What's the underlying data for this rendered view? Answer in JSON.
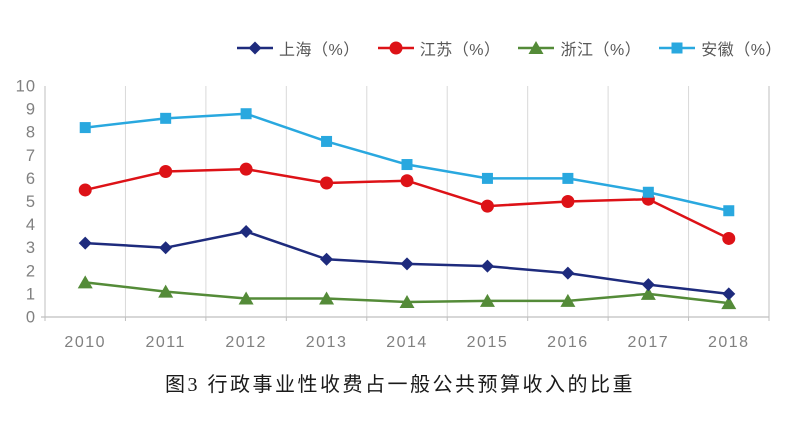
{
  "chart_data": {
    "type": "line",
    "title": "图3 行政事业性收费占一般公共预算收入的比重",
    "categories": [
      "2010",
      "2011",
      "2012",
      "2013",
      "2014",
      "2015",
      "2016",
      "2017",
      "2018"
    ],
    "series": [
      {
        "name": "上海（%）",
        "marker": "diamond",
        "color": "#1E2B7D",
        "values": [
          3.2,
          3.0,
          3.7,
          2.5,
          2.3,
          2.2,
          1.9,
          1.4,
          1.0
        ]
      },
      {
        "name": "江苏（%）",
        "marker": "circle",
        "color": "#DD1217",
        "values": [
          5.5,
          6.3,
          6.4,
          5.8,
          5.9,
          4.8,
          5.0,
          5.1,
          3.4
        ]
      },
      {
        "name": "浙江（%）",
        "marker": "triangle",
        "color": "#548B38",
        "values": [
          1.5,
          1.1,
          0.8,
          0.8,
          0.65,
          0.7,
          0.7,
          1.0,
          0.6
        ]
      },
      {
        "name": "安徽（%）",
        "marker": "square",
        "color": "#29A8DF",
        "values": [
          8.2,
          8.6,
          8.8,
          7.6,
          6.6,
          6.0,
          6.0,
          5.4,
          4.6
        ]
      }
    ],
    "ylim": [
      0,
      10
    ],
    "y_ticks": [
      0,
      1,
      2,
      3,
      4,
      5,
      6,
      7,
      8,
      9,
      10
    ],
    "grid": "vertical",
    "legend_position": "top",
    "axis_label_color": "#808080",
    "gridline_color": "#D9D9D9",
    "axis_line_color": "#BFBFBF"
  }
}
